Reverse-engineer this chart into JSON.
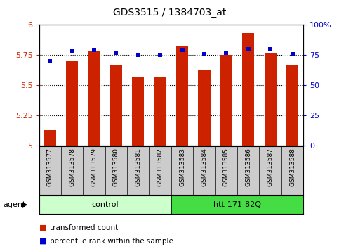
{
  "title": "GDS3515 / 1384703_at",
  "categories": [
    "GSM313577",
    "GSM313578",
    "GSM313579",
    "GSM313580",
    "GSM313581",
    "GSM313582",
    "GSM313583",
    "GSM313584",
    "GSM313585",
    "GSM313586",
    "GSM313587",
    "GSM313588"
  ],
  "red_values": [
    5.13,
    5.7,
    5.78,
    5.67,
    5.57,
    5.57,
    5.83,
    5.63,
    5.75,
    5.93,
    5.77,
    5.67
  ],
  "blue_values": [
    70,
    78,
    79,
    77,
    75,
    75,
    79,
    76,
    77,
    80,
    80,
    76
  ],
  "ylim_left": [
    5.0,
    6.0
  ],
  "ylim_right": [
    0,
    100
  ],
  "yticks_left": [
    5.0,
    5.25,
    5.5,
    5.75,
    6.0
  ],
  "yticks_right": [
    0,
    25,
    50,
    75,
    100
  ],
  "ytick_labels_left": [
    "5",
    "5.25",
    "5.5",
    "5.75",
    "6"
  ],
  "ytick_labels_right": [
    "0",
    "25",
    "50",
    "75",
    "100%"
  ],
  "bar_color": "#cc2200",
  "dot_color": "#0000cc",
  "control_label": "control",
  "treatment_label": "htt-171-82Q",
  "agent_label": "agent",
  "legend_red": "transformed count",
  "legend_blue": "percentile rank within the sample",
  "control_color": "#ccffcc",
  "treatment_color": "#44dd44",
  "tick_bg_color": "#cccccc",
  "bar_width": 0.55,
  "n_control": 6,
  "n_treatment": 6
}
